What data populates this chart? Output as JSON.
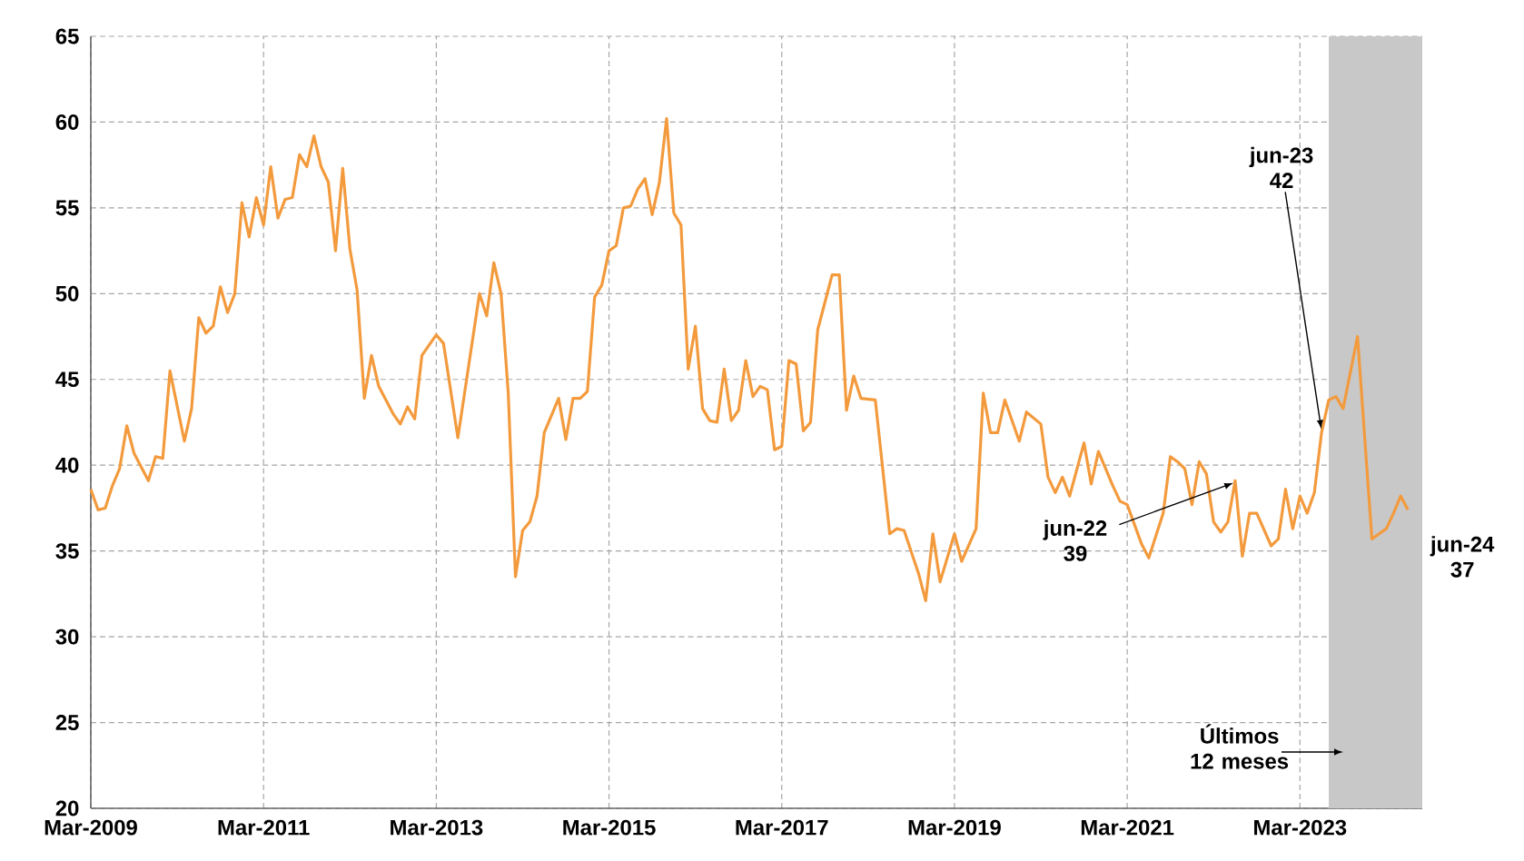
{
  "chart_data": {
    "type": "line",
    "x": [
      "2009-03",
      "2009-04",
      "2009-05",
      "2009-06",
      "2009-07",
      "2009-08",
      "2009-09",
      "2009-11",
      "2009-12",
      "2010-01",
      "2010-02",
      "2010-04",
      "2010-05",
      "2010-06",
      "2010-07",
      "2010-08",
      "2010-09",
      "2010-10",
      "2010-11",
      "2010-12",
      "2011-01",
      "2011-02",
      "2011-03",
      "2011-04",
      "2011-05",
      "2011-06",
      "2011-07",
      "2011-08",
      "2011-09",
      "2011-10",
      "2011-11",
      "2011-12",
      "2012-01",
      "2012-02",
      "2012-03",
      "2012-04",
      "2012-05",
      "2012-06",
      "2012-07",
      "2012-09",
      "2012-10",
      "2012-11",
      "2012-12",
      "2013-01",
      "2013-03",
      "2013-04",
      "2013-06",
      "2013-09",
      "2013-10",
      "2013-11",
      "2013-12",
      "2014-01",
      "2014-02",
      "2014-03",
      "2014-04",
      "2014-05",
      "2014-06",
      "2014-08",
      "2014-09",
      "2014-10",
      "2014-11",
      "2014-12",
      "2015-01",
      "2015-02",
      "2015-03",
      "2015-04",
      "2015-05",
      "2015-06",
      "2015-07",
      "2015-08",
      "2015-09",
      "2015-10",
      "2015-11",
      "2015-12",
      "2016-01",
      "2016-02",
      "2016-03",
      "2016-04",
      "2016-05",
      "2016-06",
      "2016-07",
      "2016-08",
      "2016-09",
      "2016-10",
      "2016-11",
      "2016-12",
      "2017-01",
      "2017-02",
      "2017-03",
      "2017-04",
      "2017-05",
      "2017-06",
      "2017-07",
      "2017-08",
      "2017-10",
      "2017-11",
      "2017-12",
      "2018-01",
      "2018-02",
      "2018-04",
      "2018-06",
      "2018-07",
      "2018-08",
      "2018-10",
      "2018-11",
      "2018-12",
      "2019-01",
      "2019-03",
      "2019-04",
      "2019-06",
      "2019-07",
      "2019-08",
      "2019-09",
      "2019-10",
      "2019-12",
      "2020-01",
      "2020-03",
      "2020-04",
      "2020-05",
      "2020-06",
      "2020-07",
      "2020-09",
      "2020-10",
      "2020-11",
      "2021-01",
      "2021-02",
      "2021-03",
      "2021-05",
      "2021-06",
      "2021-08",
      "2021-09",
      "2021-10",
      "2021-11",
      "2021-12",
      "2022-01",
      "2022-02",
      "2022-03",
      "2022-04",
      "2022-05",
      "2022-06",
      "2022-07",
      "2022-08",
      "2022-09",
      "2022-11",
      "2022-12",
      "2023-01",
      "2023-02",
      "2023-03",
      "2023-04",
      "2023-05",
      "2023-06",
      "2023-07",
      "2023-08",
      "2023-09",
      "2023-11",
      "2024-01",
      "2024-03",
      "2024-04",
      "2024-05",
      "2024-06"
    ],
    "values": [
      38.6,
      37.4,
      37.5,
      38.8,
      39.8,
      42.3,
      40.7,
      39.1,
      40.5,
      40.4,
      45.5,
      41.4,
      43.3,
      48.6,
      47.7,
      48.1,
      50.4,
      48.9,
      50.0,
      55.3,
      53.3,
      55.6,
      54.0,
      57.4,
      54.4,
      55.5,
      55.6,
      58.1,
      57.4,
      59.2,
      57.4,
      56.5,
      52.5,
      57.3,
      52.6,
      50.2,
      43.9,
      46.4,
      44.6,
      43.0,
      42.4,
      43.4,
      42.7,
      46.4,
      47.6,
      47.1,
      41.6,
      50.0,
      48.7,
      51.8,
      50.0,
      44.2,
      33.5,
      36.2,
      36.7,
      38.2,
      41.9,
      43.9,
      41.5,
      43.9,
      43.9,
      44.3,
      49.8,
      50.5,
      52.5,
      52.8,
      55.0,
      55.1,
      56.1,
      56.7,
      54.6,
      56.5,
      60.2,
      54.7,
      54.0,
      45.6,
      48.1,
      43.3,
      42.6,
      42.5,
      45.6,
      42.6,
      43.2,
      46.1,
      44.0,
      44.6,
      44.4,
      40.9,
      41.1,
      46.1,
      45.9,
      42.0,
      42.5,
      47.9,
      51.1,
      51.1,
      43.2,
      45.2,
      43.9,
      43.8,
      36.0,
      36.3,
      36.2,
      33.7,
      32.1,
      36.0,
      33.2,
      36.0,
      34.4,
      36.3,
      44.2,
      41.9,
      41.9,
      43.8,
      41.4,
      43.1,
      42.4,
      39.3,
      38.4,
      39.3,
      38.2,
      41.3,
      38.9,
      40.8,
      38.8,
      37.9,
      37.7,
      35.4,
      34.6,
      37.2,
      40.5,
      40.2,
      39.8,
      37.7,
      40.2,
      39.5,
      36.7,
      36.1,
      36.7,
      39.1,
      34.7,
      37.2,
      37.2,
      35.3,
      35.7,
      38.6,
      36.3,
      38.2,
      37.2,
      38.4,
      41.9,
      43.8,
      44.0,
      43.3,
      47.5,
      35.7,
      36.3,
      37.2,
      38.2,
      37.4
    ],
    "color": "#f39a3d",
    "xlim": [
      "2009-03",
      "2024-08"
    ],
    "xticks": [
      {
        "value": "2009-03",
        "label": "Mar-2009"
      },
      {
        "value": "2011-03",
        "label": "Mar-2011"
      },
      {
        "value": "2013-03",
        "label": "Mar-2013"
      },
      {
        "value": "2015-03",
        "label": "Mar-2015"
      },
      {
        "value": "2017-03",
        "label": "Mar-2017"
      },
      {
        "value": "2019-03",
        "label": "Mar-2019"
      },
      {
        "value": "2021-03",
        "label": "Mar-2021"
      },
      {
        "value": "2023-03",
        "label": "Mar-2023"
      }
    ],
    "ylim": [
      20,
      65
    ],
    "yticks": [
      20,
      25,
      30,
      35,
      40,
      45,
      50,
      55,
      60,
      65
    ],
    "grid": true,
    "bands": [
      {
        "axis": "x",
        "from": "2023-07",
        "to": "2024-08",
        "label": "Últimos 12 meses",
        "color": "#c8c8c8"
      }
    ],
    "annotations": [
      {
        "text": "jun-23 42",
        "x": "2023-06",
        "y": 42
      },
      {
        "text": "jun-22 39",
        "x": "2022-06",
        "y": 39
      },
      {
        "text": "jun-24 37",
        "x": "2024-06",
        "y": 37
      }
    ]
  }
}
